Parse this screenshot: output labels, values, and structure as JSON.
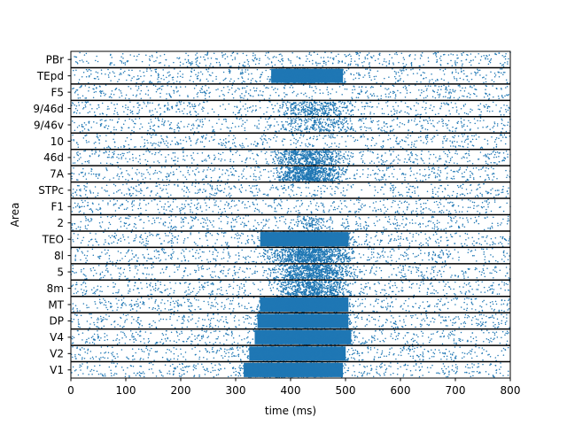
{
  "chart_data": {
    "type": "scatter",
    "title": "",
    "xlabel": "time (ms)",
    "ylabel": "Area",
    "xlim": [
      0,
      800
    ],
    "xticks": [
      0,
      100,
      200,
      300,
      400,
      500,
      600,
      700,
      800
    ],
    "grid": false,
    "legend": "none",
    "marker_color": "#1f77b4",
    "separator_color": "#000000",
    "areas": [
      {
        "name": "PBr",
        "burst_start_ms": null,
        "burst_end_ms": null,
        "burst_intensity": 0
      },
      {
        "name": "TEpd",
        "burst_start_ms": 355,
        "burst_end_ms": 505,
        "burst_intensity": 1.0
      },
      {
        "name": "F5",
        "burst_start_ms": null,
        "burst_end_ms": null,
        "burst_intensity": 0
      },
      {
        "name": "9/46d",
        "burst_start_ms": 370,
        "burst_end_ms": 520,
        "burst_intensity": 0.3
      },
      {
        "name": "9/46v",
        "burst_start_ms": 380,
        "burst_end_ms": 520,
        "burst_intensity": 0.2
      },
      {
        "name": "10",
        "burst_start_ms": null,
        "burst_end_ms": null,
        "burst_intensity": 0
      },
      {
        "name": "46d",
        "burst_start_ms": 360,
        "burst_end_ms": 510,
        "burst_intensity": 0.5
      },
      {
        "name": "7A",
        "burst_start_ms": 365,
        "burst_end_ms": 505,
        "burst_intensity": 0.75
      },
      {
        "name": "STPc",
        "burst_start_ms": null,
        "burst_end_ms": null,
        "burst_intensity": 0
      },
      {
        "name": "F1",
        "burst_start_ms": null,
        "burst_end_ms": null,
        "burst_intensity": 0
      },
      {
        "name": "2",
        "burst_start_ms": 400,
        "burst_end_ms": 480,
        "burst_intensity": 0.1
      },
      {
        "name": "TEO",
        "burst_start_ms": 335,
        "burst_end_ms": 515,
        "burst_intensity": 1.0
      },
      {
        "name": "8l",
        "burst_start_ms": 355,
        "burst_end_ms": 520,
        "burst_intensity": 0.85
      },
      {
        "name": "5",
        "burst_start_ms": 360,
        "burst_end_ms": 520,
        "burst_intensity": 0.7
      },
      {
        "name": "8m",
        "burst_start_ms": 365,
        "burst_end_ms": 520,
        "burst_intensity": 0.6
      },
      {
        "name": "MT",
        "burst_start_ms": 335,
        "burst_end_ms": 515,
        "burst_intensity": 1.0
      },
      {
        "name": "DP",
        "burst_start_ms": 330,
        "burst_end_ms": 515,
        "burst_intensity": 1.0
      },
      {
        "name": "V4",
        "burst_start_ms": 325,
        "burst_end_ms": 520,
        "burst_intensity": 1.0
      },
      {
        "name": "V2",
        "burst_start_ms": 315,
        "burst_end_ms": 510,
        "burst_intensity": 1.0
      },
      {
        "name": "V1",
        "burst_start_ms": 305,
        "burst_end_ms": 505,
        "burst_intensity": 1.0
      }
    ]
  }
}
